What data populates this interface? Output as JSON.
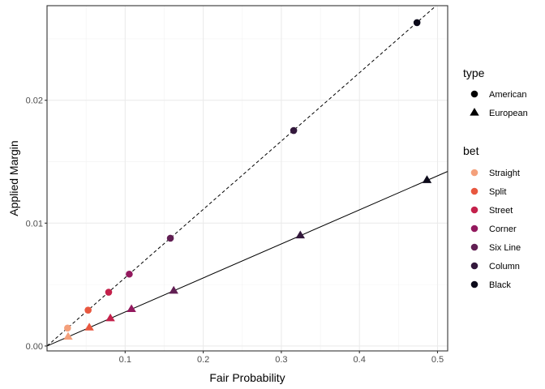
{
  "chart_data": {
    "type": "scatter",
    "xlabel": "Fair Probability",
    "ylabel": "Applied Margin",
    "xlim": [
      0.0,
      0.513
    ],
    "ylim": [
      -0.0004,
      0.0277
    ],
    "x_ticks": [
      {
        "v": 0.1,
        "label": "0.1"
      },
      {
        "v": 0.2,
        "label": "0.2"
      },
      {
        "v": 0.3,
        "label": "0.3"
      },
      {
        "v": 0.4,
        "label": "0.4"
      },
      {
        "v": 0.5,
        "label": "0.5"
      }
    ],
    "y_ticks": [
      {
        "v": 0.0,
        "label": "0.00"
      },
      {
        "v": 0.01,
        "label": "0.01"
      },
      {
        "v": 0.02,
        "label": "0.02"
      }
    ],
    "grid": true,
    "lines": [
      {
        "type": "American",
        "style": "dashed",
        "slope": 0.0556,
        "intercept": 0.0
      },
      {
        "type": "European",
        "style": "solid",
        "slope": 0.0277,
        "intercept": 0.0
      }
    ],
    "legend_type": {
      "title": "type",
      "entries": [
        {
          "label": "American",
          "shape": "circle"
        },
        {
          "label": "European",
          "shape": "triangle"
        }
      ]
    },
    "legend_bet": {
      "title": "bet",
      "entries": [
        {
          "label": "Straight",
          "color": "#f4a07b"
        },
        {
          "label": "Split",
          "color": "#e8573f"
        },
        {
          "label": "Street",
          "color": "#c4214b"
        },
        {
          "label": "Corner",
          "color": "#93195e"
        },
        {
          "label": "Six Line",
          "color": "#611f53"
        },
        {
          "label": "Column",
          "color": "#33183c"
        },
        {
          "label": "Black",
          "color": "#0c0a1a"
        }
      ]
    },
    "points": [
      {
        "type": "American",
        "bet": "Straight",
        "x": 0.0263,
        "y": 0.00146
      },
      {
        "type": "American",
        "bet": "Split",
        "x": 0.0526,
        "y": 0.00292
      },
      {
        "type": "American",
        "bet": "Street",
        "x": 0.0789,
        "y": 0.00438
      },
      {
        "type": "American",
        "bet": "Corner",
        "x": 0.1053,
        "y": 0.00585
      },
      {
        "type": "American",
        "bet": "Six Line",
        "x": 0.1579,
        "y": 0.00877
      },
      {
        "type": "American",
        "bet": "Column",
        "x": 0.3158,
        "y": 0.01754
      },
      {
        "type": "American",
        "bet": "Black",
        "x": 0.4737,
        "y": 0.02632
      },
      {
        "type": "European",
        "bet": "Straight",
        "x": 0.027,
        "y": 0.00075
      },
      {
        "type": "European",
        "bet": "Split",
        "x": 0.0541,
        "y": 0.0015
      },
      {
        "type": "European",
        "bet": "Street",
        "x": 0.0811,
        "y": 0.00225
      },
      {
        "type": "European",
        "bet": "Corner",
        "x": 0.1081,
        "y": 0.003
      },
      {
        "type": "European",
        "bet": "Six Line",
        "x": 0.1622,
        "y": 0.0045
      },
      {
        "type": "European",
        "bet": "Column",
        "x": 0.3243,
        "y": 0.009
      },
      {
        "type": "European",
        "bet": "Black",
        "x": 0.4865,
        "y": 0.0135
      }
    ]
  }
}
